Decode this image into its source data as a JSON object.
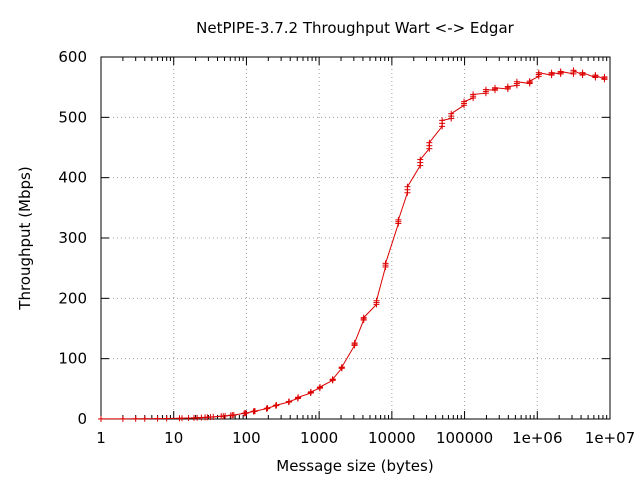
{
  "chart_data": {
    "type": "line",
    "title": "NetPIPE-3.7.2 Throughput Wart <-> Edgar",
    "xlabel": "Message size (bytes)",
    "ylabel": "Throughput (Mbps)",
    "x_scale": "log",
    "xlim": [
      1,
      10000000
    ],
    "ylim": [
      0,
      600
    ],
    "x_ticks": [
      1,
      10,
      100,
      1000,
      10000,
      100000,
      1000000,
      10000000
    ],
    "x_tick_labels": [
      "1",
      "10",
      "100",
      "1000",
      "10000",
      "100000",
      "1e+06",
      "1e+07"
    ],
    "y_ticks": [
      0,
      100,
      200,
      300,
      400,
      500,
      600
    ],
    "y_tick_labels": [
      "0",
      "100",
      "200",
      "300",
      "400",
      "500",
      "600"
    ],
    "grid": true,
    "line_color": "#dd0000",
    "series": [
      {
        "x": [
          1,
          2,
          3,
          4,
          6,
          8,
          12,
          13,
          16,
          19,
          21,
          24,
          27,
          29,
          32,
          35,
          45,
          48,
          51,
          61,
          64,
          67,
          93,
          96,
          99,
          125,
          128,
          131,
          189,
          192,
          195,
          253,
          256,
          259,
          381,
          384,
          387,
          509,
          512,
          515,
          765,
          768,
          771,
          1021,
          1024,
          1027,
          1533,
          1536,
          1539,
          2045,
          2048,
          2051,
          3069,
          3072,
          3075,
          4093,
          4096,
          4099,
          6141,
          6144,
          6147,
          8189,
          8192,
          8195,
          12285,
          12288,
          12291,
          16381,
          16384,
          16387,
          24573,
          24576,
          24579,
          32765,
          32768,
          32771,
          49149,
          49152,
          49155,
          65533,
          65536,
          65539,
          98301,
          98304,
          98307,
          131069,
          131072,
          131075,
          196605,
          196608,
          196611,
          262141,
          262144,
          262147,
          393213,
          393216,
          393219,
          524285,
          524288,
          524291,
          786429,
          786432,
          786435,
          1048573,
          1048576,
          1048579,
          1572861,
          1572864,
          1572867,
          2097149,
          2097152,
          2097155,
          3145725,
          3145728,
          3145731,
          4194301,
          4194304,
          4194307,
          6291453,
          6291456,
          6291459,
          8388605,
          8388608,
          8388611
        ],
        "y": [
          0.1,
          0.2,
          0.3,
          0.4,
          0.6,
          0.8,
          1.2,
          1.3,
          1.6,
          1.9,
          2.1,
          2.4,
          2.7,
          2.9,
          3.2,
          3.5,
          4.5,
          4.8,
          5.1,
          6.1,
          6.4,
          6.7,
          9.3,
          9.6,
          9.9,
          12.5,
          12.8,
          13.1,
          17,
          17.5,
          18,
          22,
          22.5,
          23,
          28,
          28.5,
          29,
          34,
          35,
          36,
          43,
          44,
          45,
          51,
          52,
          53,
          64,
          65,
          66,
          84,
          85,
          86,
          122,
          124,
          126,
          164,
          166,
          168,
          190,
          193,
          196,
          252,
          255,
          258,
          324,
          327,
          330,
          375,
          380,
          385,
          420,
          425,
          430,
          448,
          453,
          458,
          485,
          490,
          495,
          498,
          502,
          506,
          520,
          523,
          526,
          532,
          535,
          538,
          540,
          543,
          546,
          545,
          547,
          549,
          547,
          549,
          551,
          553,
          556,
          559,
          556,
          558,
          560,
          568,
          571,
          574,
          570,
          572,
          574,
          572,
          574,
          576,
          572,
          575,
          578,
          570,
          572,
          574,
          566,
          568,
          570,
          563,
          565,
          567
        ]
      }
    ]
  }
}
